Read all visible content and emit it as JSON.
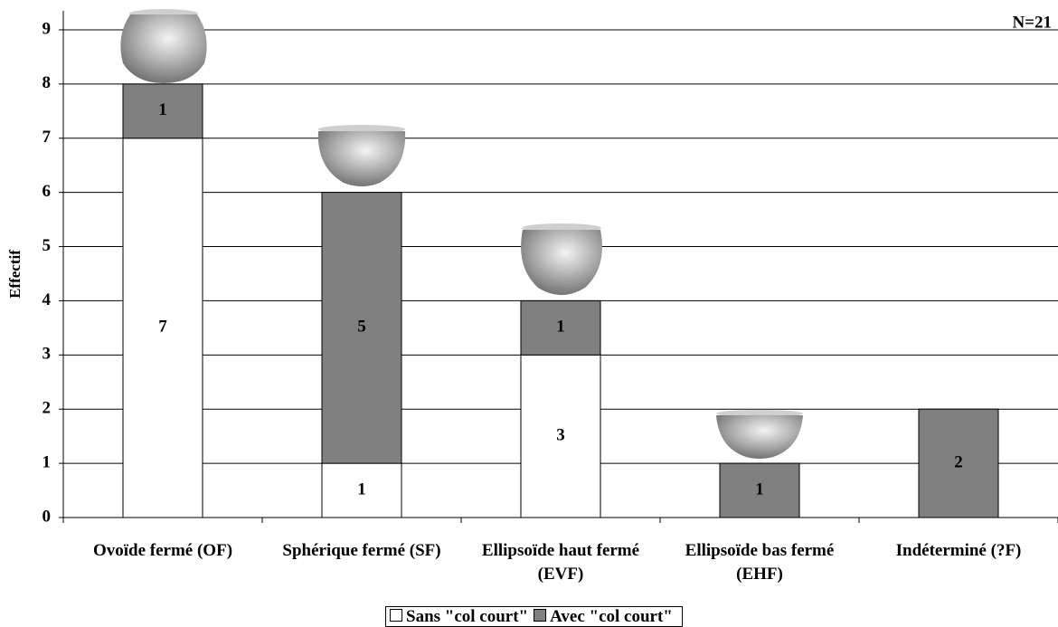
{
  "chart_data": {
    "type": "stacked_bar",
    "annotation": "N=21",
    "y_label": "Effectif",
    "categories": [
      "Ovoïde fermé (OF)",
      "Sphérique fermé (SF)",
      "Ellipsoïde haut fermé (EVF)",
      "Ellipsoïde bas fermé (EHF)",
      "Indéterminé (?F)"
    ],
    "series": [
      {
        "name": "Sans \"col court\"",
        "color": "#ffffff",
        "values": [
          7,
          1,
          3,
          0,
          0
        ]
      },
      {
        "name": "Avec \"col court\"",
        "color": "#808080",
        "values": [
          1,
          5,
          1,
          1,
          2
        ]
      }
    ],
    "ylim": [
      0,
      9.35
    ],
    "yticks": [
      0,
      1,
      2,
      3,
      4,
      5,
      6,
      7,
      8,
      9
    ],
    "grid": true
  }
}
